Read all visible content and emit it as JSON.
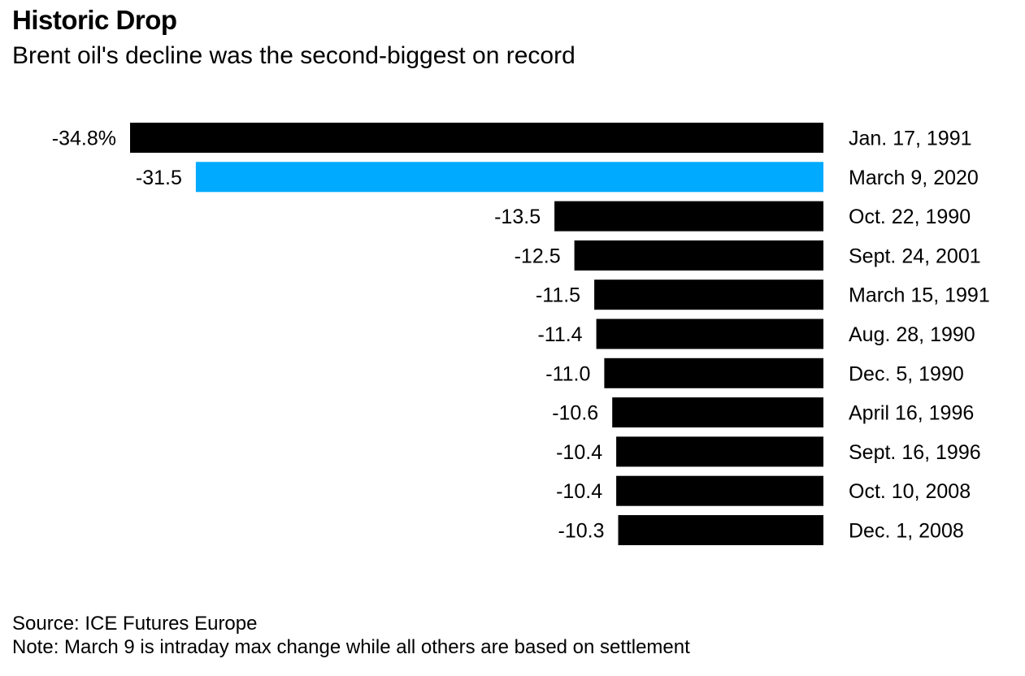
{
  "header": {
    "title": "Historic Drop",
    "subtitle": "Brent oil's decline was the second-biggest on record"
  },
  "footer": {
    "source": "Source: ICE Futures Europe",
    "note": "Note: March 9 is intraday max change while all others are based on settlement"
  },
  "colors": {
    "default_bar": "#000000",
    "highlight_bar": "#00aaff"
  },
  "chart_data": {
    "type": "bar",
    "orientation": "horizontal",
    "categories": [
      "Jan. 17, 1991",
      "March 9, 2020",
      "Oct. 22, 1990",
      "Sept. 24, 2001",
      "March 15, 1991",
      "Aug. 28, 1990",
      "Dec. 5, 1990",
      "April 16, 1996",
      "Sept. 16, 1996",
      "Oct. 10, 2008",
      "Dec. 1, 2008"
    ],
    "values": [
      -34.8,
      -31.5,
      -13.5,
      -12.5,
      -11.5,
      -11.4,
      -11.0,
      -10.6,
      -10.4,
      -10.4,
      -10.3
    ],
    "value_labels": [
      "-34.8%",
      "-31.5",
      "-13.5",
      "-12.5",
      "-11.5",
      "-11.4",
      "-11.0",
      "-10.6",
      "-10.4",
      "-10.4",
      "-10.3"
    ],
    "highlight_category": "March 9, 2020",
    "xlim": [
      -34.8,
      0
    ],
    "grid": false,
    "legend": "none"
  }
}
